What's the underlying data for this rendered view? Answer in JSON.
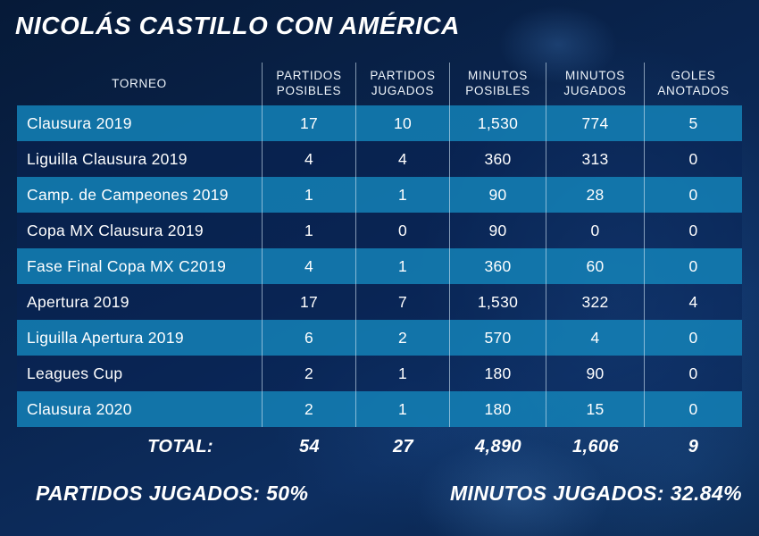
{
  "title": "NICOLÁS CASTILLO CON AMÉRICA",
  "colors": {
    "accent_teal": "#137CB1",
    "row_navy": "#0B2A5B",
    "background_navy": "#0A2450",
    "separator": "#D7E9F6",
    "text": "#FFFFFF"
  },
  "chart_data": {
    "type": "table",
    "title": "NICOLÁS CASTILLO CON AMÉRICA",
    "columns": [
      "TORNEO",
      "PARTIDOS POSIBLES",
      "PARTIDOS JUGADOS",
      "MINUTOS POSIBLES",
      "MINUTOS JUGADOS",
      "GOLES ANOTADOS"
    ],
    "column_lines": [
      [
        "TORNEO"
      ],
      [
        "PARTIDOS",
        "POSIBLES"
      ],
      [
        "PARTIDOS",
        "JUGADOS"
      ],
      [
        "MINUTOS",
        "POSIBLES"
      ],
      [
        "MINUTOS",
        "JUGADOS"
      ],
      [
        "GOLES",
        "ANOTADOS"
      ]
    ],
    "rows": [
      [
        "Clausura 2019",
        "17",
        "10",
        "1,530",
        "774",
        "5"
      ],
      [
        "Liguilla Clausura 2019",
        "4",
        "4",
        "360",
        "313",
        "0"
      ],
      [
        "Camp. de Campeones 2019",
        "1",
        "1",
        "90",
        "28",
        "0"
      ],
      [
        "Copa MX Clausura 2019",
        "1",
        "0",
        "90",
        "0",
        "0"
      ],
      [
        "Fase Final Copa MX C2019",
        "4",
        "1",
        "360",
        "60",
        "0"
      ],
      [
        "Apertura 2019",
        "17",
        "7",
        "1,530",
        "322",
        "4"
      ],
      [
        "Liguilla Apertura 2019",
        "6",
        "2",
        "570",
        "4",
        "0"
      ],
      [
        "Leagues Cup",
        "2",
        "1",
        "180",
        "90",
        "0"
      ],
      [
        "Clausura 2020",
        "2",
        "1",
        "180",
        "15",
        "0"
      ]
    ],
    "total": [
      "TOTAL:",
      "54",
      "27",
      "4,890",
      "1,606",
      "9"
    ],
    "annotations": [
      "PARTIDOS JUGADOS: 50%",
      "MINUTOS JUGADOS: 32.84%"
    ]
  }
}
